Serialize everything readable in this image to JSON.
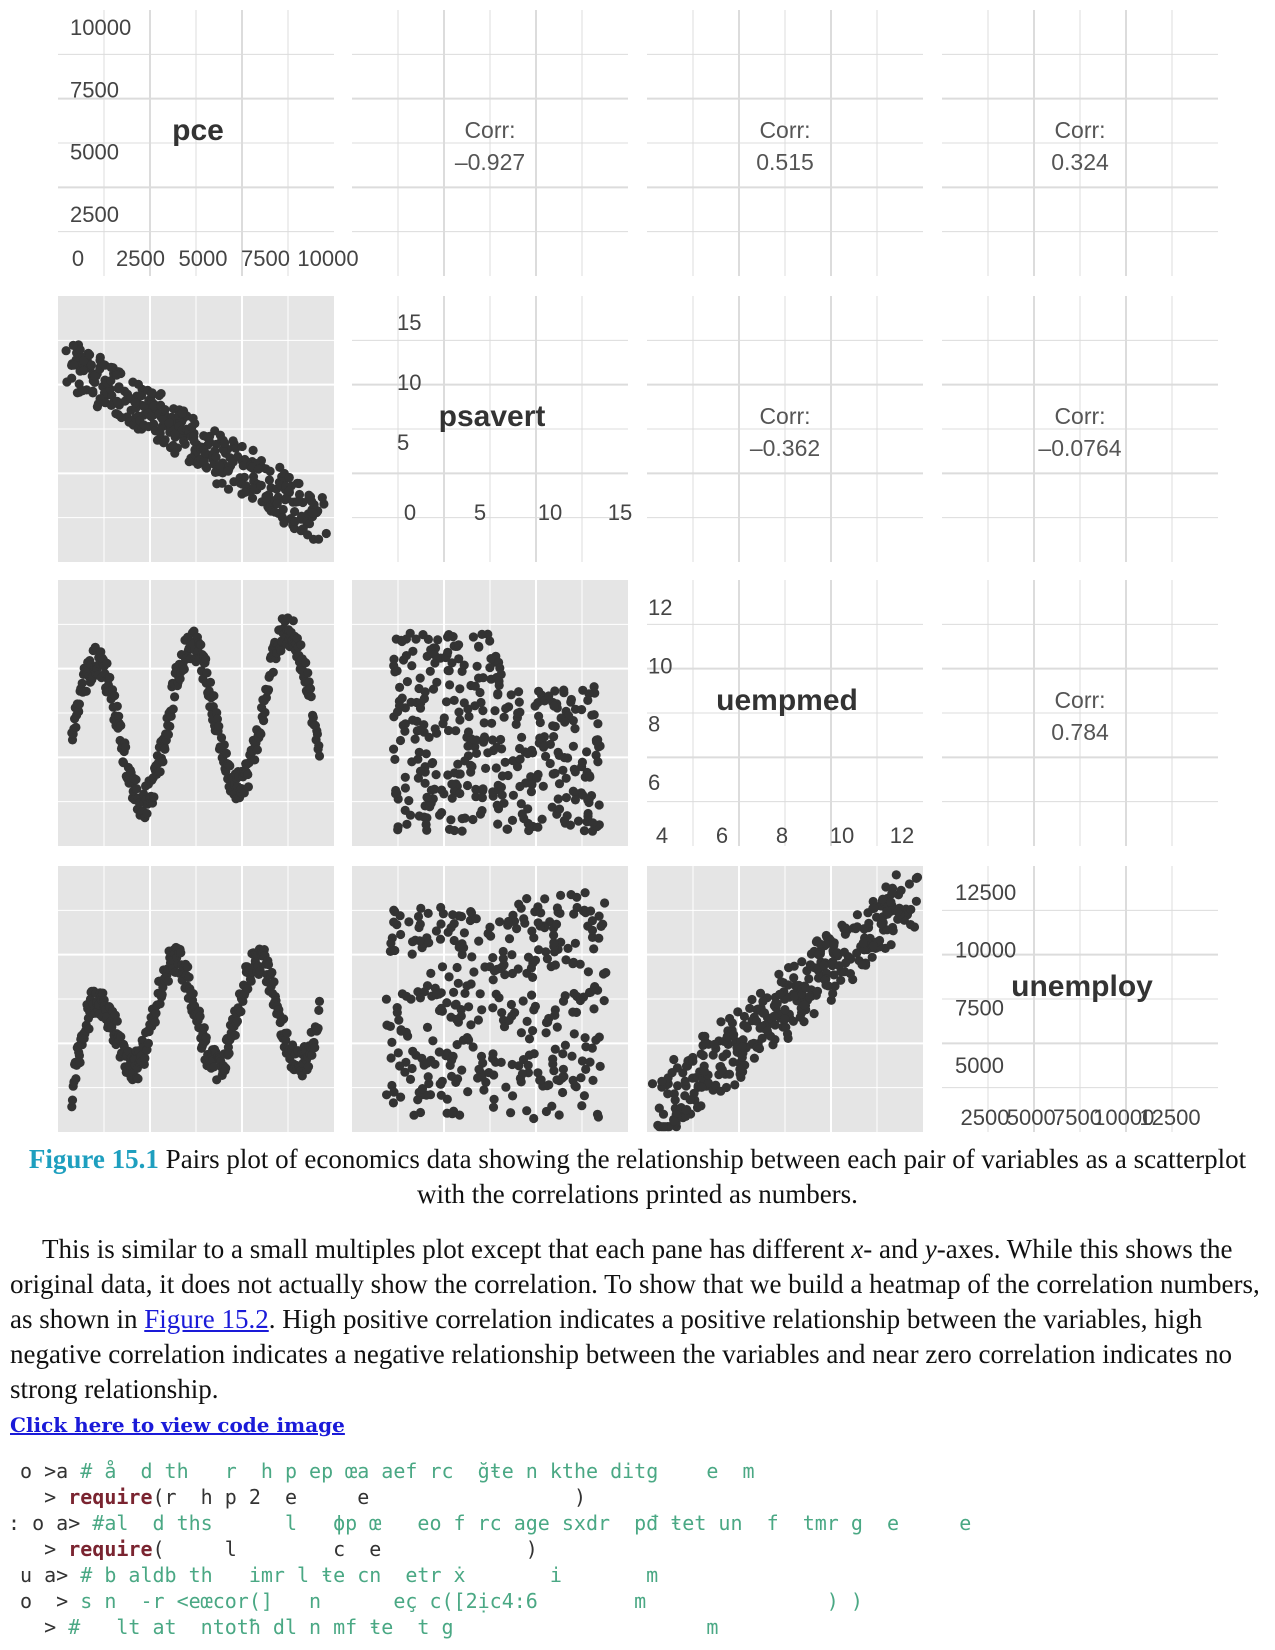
{
  "chart_data": {
    "type": "scatter",
    "variables": [
      "pce",
      "psavert",
      "uempmed",
      "unemploy"
    ],
    "ticks": {
      "pce": [
        "0",
        "2500",
        "5000",
        "7500",
        "10000"
      ],
      "pce_y": [
        "2500",
        "5000",
        "7500",
        "10000"
      ],
      "psavert": [
        "0",
        "5",
        "10",
        "15"
      ],
      "uempmed": [
        "4",
        "6",
        "8",
        "10",
        "12"
      ],
      "uempmed_y": [
        "6",
        "8",
        "10",
        "12"
      ],
      "unemploy_x": [
        "2500",
        "5000",
        "7500",
        "10000",
        "12500"
      ],
      "unemploy_y": [
        "5000",
        "7500",
        "10000",
        "12500"
      ]
    },
    "correlations": [
      {
        "row": "pce",
        "col": "psavert",
        "label": "Corr:",
        "value": "-0.927"
      },
      {
        "row": "pce",
        "col": "uempmed",
        "label": "Corr:",
        "value": "0.515"
      },
      {
        "row": "pce",
        "col": "unemploy",
        "label": "Corr:",
        "value": "0.324"
      },
      {
        "row": "psavert",
        "col": "uempmed",
        "label": "Corr:",
        "value": "-0.362"
      },
      {
        "row": "psavert",
        "col": "unemploy",
        "label": "Corr:",
        "value": "-0.0764"
      },
      {
        "row": "uempmed",
        "col": "unemploy",
        "label": "Corr:",
        "value": "0.784"
      }
    ],
    "panel_bg": "#e5e5e5",
    "point_color": "#333333"
  },
  "caption": {
    "label": "Figure 15.1",
    "text": "Pairs plot of economics data showing the relationship between each pair of variables as a scatterplot with the correlations printed as numbers."
  },
  "paragraph": {
    "part1": "This is similar to a small multiples plot except that each pane has different ",
    "x": "x",
    "part2": "- and ",
    "y": "y",
    "part3": "-axes. While this shows the original data, it does not actually show the correlation. To show that we build a heatmap of the correlation numbers, as shown in ",
    "link": "Figure 15.2",
    "part4": ". High positive correlation indicates a positive relationship between the variables, high negative correlation indicates a negative relationship between the variables and near zero correlation indicates no strong relationship."
  },
  "code_link": "Click here to view code image",
  "code": {
    "line1_prompt": " o >a",
    "line1_text": " # å  d th   r  h p ep œa aef rc  ğŧe n kthe ditg    e  m",
    "line2_prompt": "   > ",
    "line2_kw": "require",
    "line2_text": "(r  h p 2  e     e                 )",
    "line3_prompt": ": o a>",
    "line3_text": " #al  d ths      l   ϕp œ   eo f rc age sxdr  pđ ŧet un  f  tmr g  e     e",
    "line4_prompt": "   > ",
    "line4_kw": "require",
    "line4_text": "(     l        c  e            )",
    "line5_prompt": " u a> ",
    "line5_text": "# b aldb th   imr l ŧe cn  etr ẋ       i       m",
    "line6_prompt": " o  >",
    "line6_text": " s n  -r <eœcor(]   n      eç c([2ịc4:6        m               ) )",
    "line7_prompt": "   > ",
    "line7_text": "#   lt at  ntotħ dl n mf ŧe  t g                     m"
  }
}
